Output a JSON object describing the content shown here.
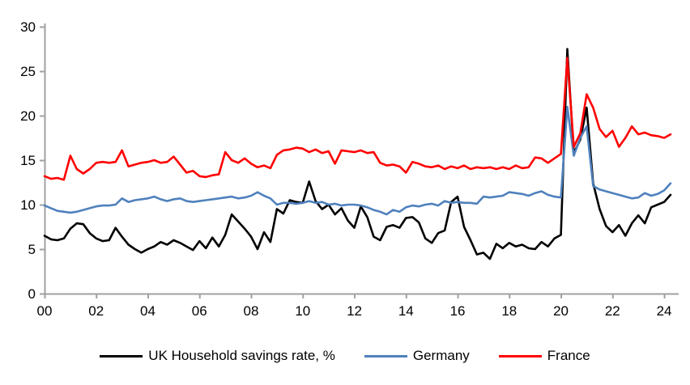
{
  "chart_data": {
    "type": "line",
    "title": "",
    "xlabel": "",
    "ylabel": "",
    "grid": false,
    "legend_position": "bottom",
    "axis_color": "#a0a0a0",
    "tick_label_color": "#000000",
    "ylim": [
      0,
      30
    ],
    "xlim": [
      2000,
      2024.5
    ],
    "y_ticks": [
      0,
      5,
      10,
      15,
      20,
      25,
      30
    ],
    "x_tick_years": [
      2000,
      2002,
      2004,
      2006,
      2008,
      2010,
      2012,
      2014,
      2016,
      2018,
      2020,
      2022,
      2024
    ],
    "x_tick_labels": [
      "00",
      "02",
      "04",
      "06",
      "08",
      "10",
      "12",
      "14",
      "16",
      "18",
      "20",
      "22",
      "24"
    ],
    "x_start": 2000,
    "x_step": 0.25,
    "x_unit": "year, quarterly data",
    "series": [
      {
        "name": "UK Household savings rate, %",
        "color": "#000000",
        "values": [
          6.5,
          6.1,
          6.0,
          6.2,
          7.3,
          7.9,
          7.8,
          6.8,
          6.2,
          5.9,
          6.0,
          7.4,
          6.4,
          5.5,
          5.0,
          4.6,
          5.0,
          5.3,
          5.8,
          5.5,
          6.0,
          5.7,
          5.3,
          4.9,
          5.9,
          5.1,
          6.3,
          5.3,
          6.6,
          8.9,
          8.1,
          7.3,
          6.4,
          5.0,
          6.9,
          5.8,
          9.5,
          9.0,
          10.5,
          10.3,
          10.2,
          12.6,
          10.4,
          9.5,
          10.0,
          8.9,
          9.6,
          8.2,
          7.4,
          9.8,
          8.6,
          6.4,
          6.0,
          7.5,
          7.7,
          7.4,
          8.5,
          8.6,
          8.0,
          6.2,
          5.7,
          6.8,
          7.1,
          10.3,
          10.9,
          7.5,
          6.0,
          4.4,
          4.6,
          3.9,
          5.6,
          5.1,
          5.7,
          5.3,
          5.5,
          5.1,
          5.0,
          5.8,
          5.3,
          6.2,
          6.6,
          27.5,
          15.8,
          17.3,
          20.9,
          12.4,
          9.5,
          7.6,
          6.9,
          7.7,
          6.5,
          7.9,
          8.8,
          7.9,
          9.7,
          10.0,
          10.3,
          11.1
        ]
      },
      {
        "name": "Germany",
        "color": "#4f81bd",
        "values": [
          9.9,
          9.6,
          9.3,
          9.2,
          9.1,
          9.2,
          9.4,
          9.6,
          9.8,
          9.9,
          9.9,
          10.0,
          10.7,
          10.3,
          10.5,
          10.6,
          10.7,
          10.9,
          10.6,
          10.4,
          10.6,
          10.7,
          10.4,
          10.3,
          10.4,
          10.5,
          10.6,
          10.7,
          10.8,
          10.9,
          10.7,
          10.8,
          11.0,
          11.4,
          11.0,
          10.7,
          10.0,
          10.2,
          10.2,
          10.1,
          10.2,
          10.4,
          10.2,
          10.3,
          10.0,
          10.1,
          9.9,
          10.0,
          10.0,
          9.9,
          9.7,
          9.4,
          9.2,
          8.9,
          9.4,
          9.2,
          9.7,
          9.9,
          9.8,
          10.0,
          10.1,
          9.9,
          10.4,
          10.2,
          10.3,
          10.2,
          10.2,
          10.1,
          10.9,
          10.8,
          10.9,
          11.0,
          11.4,
          11.3,
          11.2,
          11.0,
          11.3,
          11.5,
          11.1,
          10.9,
          10.8,
          21.0,
          15.5,
          17.5,
          18.8,
          12.1,
          11.7,
          11.5,
          11.3,
          11.1,
          10.9,
          10.7,
          10.8,
          11.3,
          11.0,
          11.2,
          11.6,
          12.4
        ]
      },
      {
        "name": "France",
        "color": "#ff0000",
        "values": [
          13.2,
          12.9,
          13.0,
          12.8,
          15.5,
          14.0,
          13.5,
          14.0,
          14.7,
          14.8,
          14.7,
          14.8,
          16.1,
          14.3,
          14.5,
          14.7,
          14.8,
          15.0,
          14.7,
          14.8,
          15.4,
          14.5,
          13.6,
          13.8,
          13.2,
          13.1,
          13.3,
          13.4,
          15.9,
          15.0,
          14.7,
          15.2,
          14.6,
          14.2,
          14.4,
          14.1,
          15.6,
          16.1,
          16.2,
          16.4,
          16.3,
          15.9,
          16.2,
          15.8,
          16.0,
          14.6,
          16.1,
          16.0,
          15.9,
          16.1,
          15.8,
          15.9,
          14.7,
          14.4,
          14.5,
          14.3,
          13.6,
          14.8,
          14.6,
          14.3,
          14.2,
          14.4,
          14.0,
          14.3,
          14.1,
          14.4,
          14.0,
          14.2,
          14.1,
          14.2,
          14.0,
          14.2,
          14.0,
          14.4,
          14.1,
          14.2,
          15.3,
          15.2,
          14.7,
          15.2,
          15.7,
          26.5,
          16.5,
          18.0,
          22.4,
          20.9,
          18.5,
          17.6,
          18.3,
          16.5,
          17.5,
          18.8,
          17.9,
          18.1,
          17.8,
          17.7,
          17.5,
          17.9
        ]
      }
    ]
  }
}
